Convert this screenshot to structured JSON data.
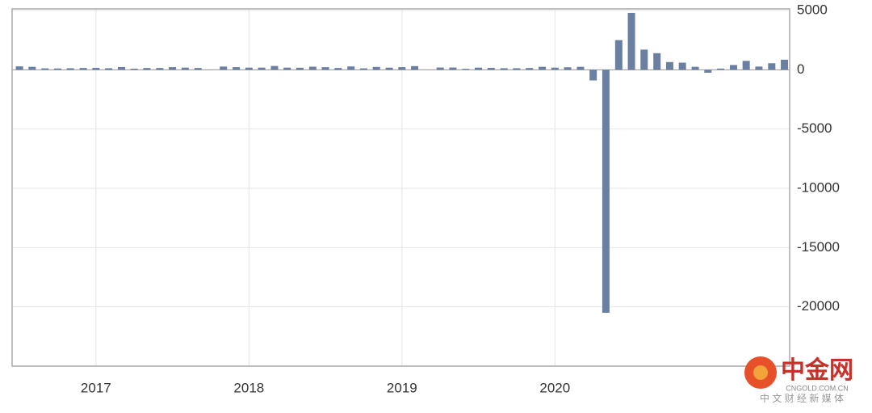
{
  "chart_data": {
    "type": "bar",
    "color": "#6a7fa1",
    "x": [
      2016.5,
      2016.583,
      2016.667,
      2016.75,
      2016.833,
      2016.917,
      2017,
      2017.083,
      2017.167,
      2017.25,
      2017.333,
      2017.417,
      2017.5,
      2017.583,
      2017.667,
      2017.75,
      2017.833,
      2017.917,
      2018,
      2018.083,
      2018.167,
      2018.25,
      2018.333,
      2018.417,
      2018.5,
      2018.583,
      2018.667,
      2018.75,
      2018.833,
      2018.917,
      2019,
      2019.083,
      2019.167,
      2019.25,
      2019.333,
      2019.417,
      2019.5,
      2019.583,
      2019.667,
      2019.75,
      2019.833,
      2019.917,
      2020,
      2020.083,
      2020.167,
      2020.25,
      2020.333,
      2020.417,
      2020.5,
      2020.583,
      2020.667,
      2020.75,
      2020.833,
      2020.917,
      2021,
      2021.083,
      2021.167,
      2021.25,
      2021.333,
      2021.417,
      2021.5
    ],
    "values": [
      290,
      250,
      120,
      110,
      130,
      150,
      160,
      130,
      230,
      90,
      150,
      150,
      220,
      180,
      150,
      20,
      270,
      220,
      180,
      180,
      320,
      180,
      170,
      260,
      220,
      150,
      280,
      120,
      240,
      180,
      220,
      310,
      10,
      190,
      190,
      80,
      180,
      160,
      130,
      130,
      150,
      250,
      180,
      210,
      250,
      -900,
      -20500,
      2500,
      4800,
      1700,
      1400,
      650,
      600,
      250,
      -250,
      100,
      400,
      750,
      270,
      550,
      850
    ],
    "xlim": [
      2016.452,
      2021.534
    ],
    "xticks": [
      2017,
      2018,
      2019,
      2020
    ],
    "ylim": [
      -25000,
      5000
    ],
    "yticks": [
      5000,
      0,
      -5000,
      -10000,
      -15000,
      -20000
    ],
    "grid": true
  },
  "watermark": {
    "brand": "中金网",
    "domain": "CNGOLD.COM.CN",
    "slogan": "中 文 财 经 新 媒 体"
  }
}
